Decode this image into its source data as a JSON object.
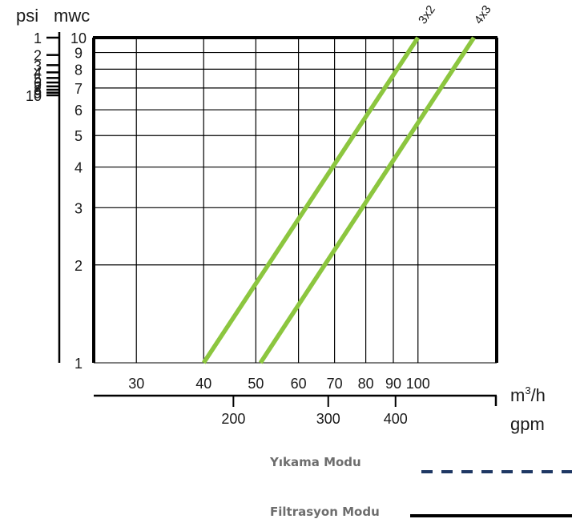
{
  "chart_data": {
    "type": "line",
    "psi_label": "psi",
    "mwc_label": "mwc",
    "m3h_label_base": "m",
    "m3h_label_sup": "3",
    "m3h_label_tail": "/h",
    "gpm_label": "gpm",
    "x_axis": {
      "scale": "log",
      "range": [
        25,
        140
      ],
      "ticks": [
        30,
        40,
        50,
        60,
        70,
        80,
        90,
        100
      ],
      "unit": "m3/h"
    },
    "y_axis": {
      "scale": "log",
      "range": [
        1,
        10
      ],
      "ticks": [
        1,
        2,
        3,
        4,
        5,
        6,
        7,
        8,
        9,
        10
      ],
      "unit": "mwc"
    },
    "psi_ticks": [
      "1",
      "2",
      "3",
      "4",
      "5",
      "6",
      "7",
      "8",
      "9",
      "10"
    ],
    "gpm_ticks": [
      "200",
      "300",
      "400"
    ],
    "grid": true,
    "series": [
      {
        "name": "3x2",
        "color": "#8cc63f",
        "x": [
          40,
          100
        ],
        "y": [
          1,
          10
        ]
      },
      {
        "name": "4x3",
        "color": "#8cc63f",
        "x": [
          51,
          127
        ],
        "y": [
          1,
          10
        ]
      }
    ],
    "legend": [
      {
        "label": "Yıkama Modu",
        "style": "dashed",
        "color": "#1f3864"
      },
      {
        "label": "Filtrasyon Modu",
        "style": "solid",
        "color": "#000000"
      }
    ]
  }
}
